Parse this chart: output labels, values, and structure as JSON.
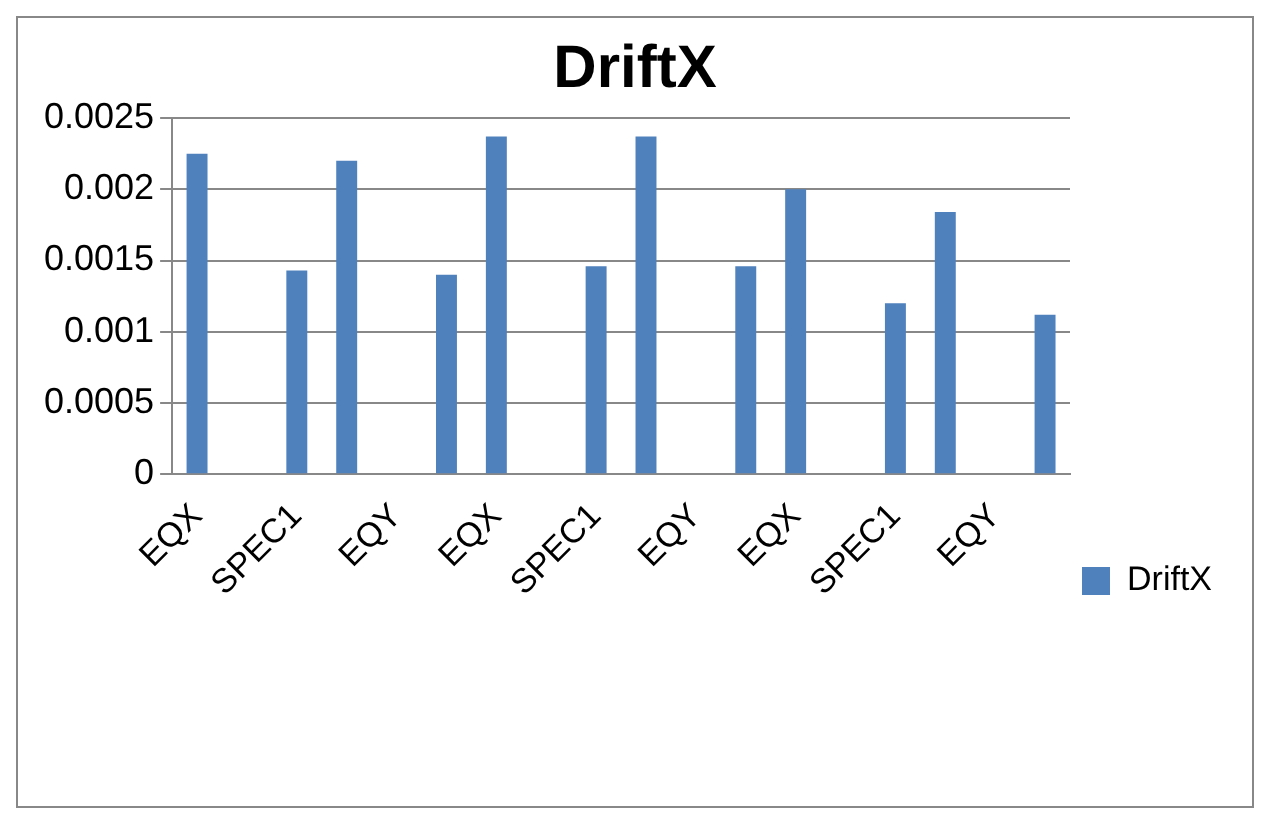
{
  "chart_data": {
    "type": "bar",
    "title": "DriftX",
    "categories": [
      "EQX",
      null,
      "SPEC1",
      null,
      "EQY",
      null,
      "EQX",
      null,
      "SPEC1",
      null,
      "EQY",
      null,
      "EQX",
      null,
      "SPEC1",
      null,
      "EQY",
      null
    ],
    "series": [
      {
        "name": "DriftX",
        "color": "#4f81bd",
        "values": [
          0.00225,
          null,
          0.00143,
          0.0022,
          null,
          0.0014,
          0.00237,
          null,
          0.00146,
          0.00237,
          null,
          0.00146,
          0.002,
          null,
          0.0012,
          0.00184,
          null,
          0.00112
        ]
      }
    ],
    "ylim": [
      0,
      0.0025
    ],
    "yticks": [
      0,
      0.0005,
      0.001,
      0.0015,
      0.002,
      0.0025
    ],
    "grid": "y",
    "legend": "right"
  }
}
